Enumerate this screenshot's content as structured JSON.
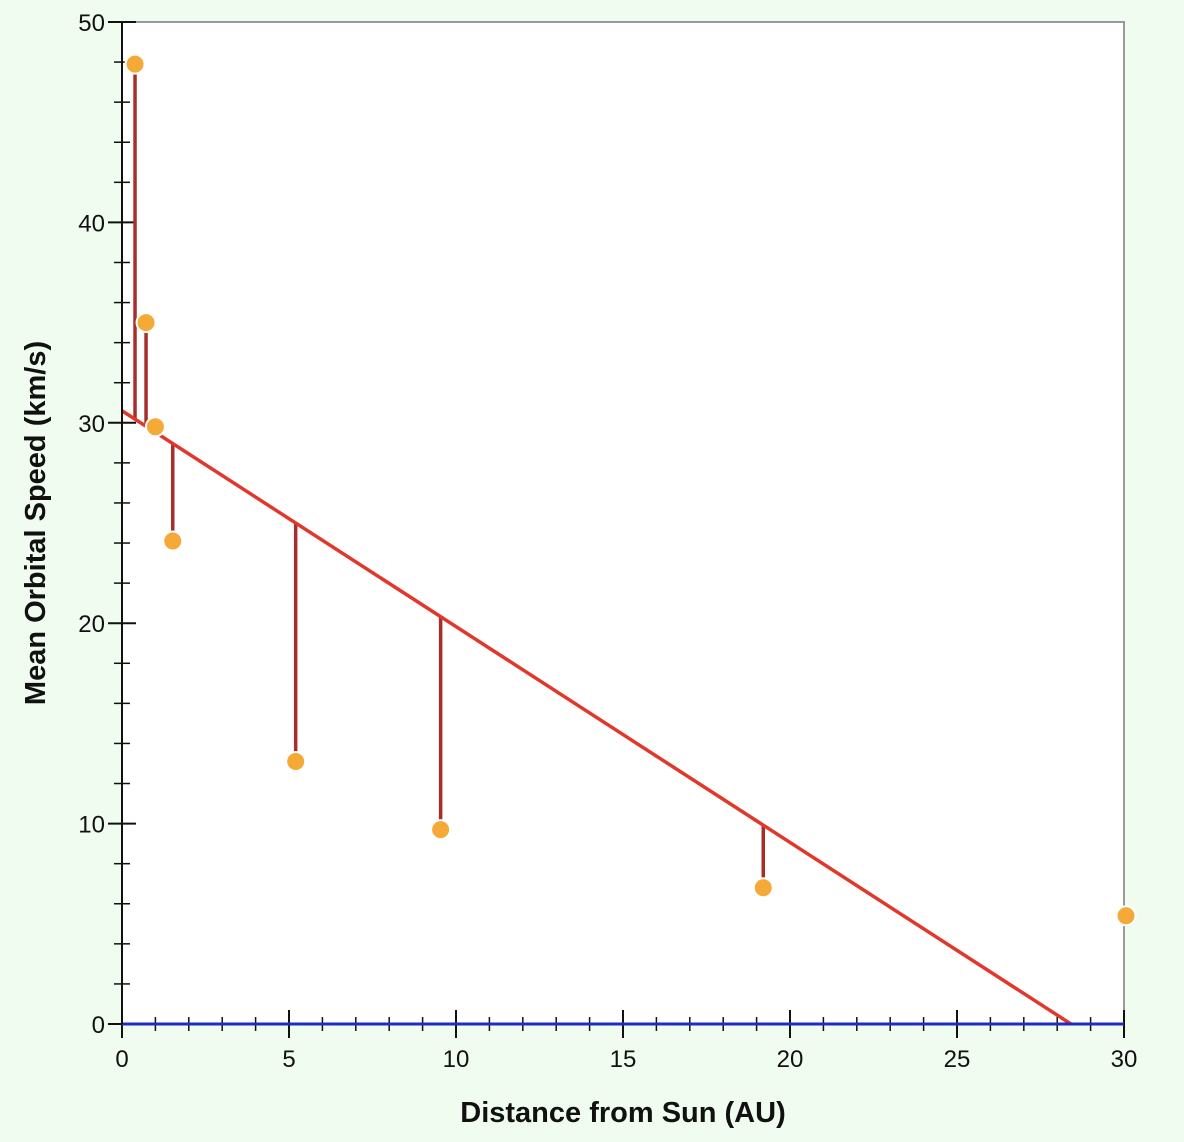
{
  "chart_data": {
    "type": "scatter",
    "title": "",
    "xlabel": "Distance from Sun (AU)",
    "ylabel": "Mean Orbital Speed (km/s)",
    "xlim": [
      0,
      30
    ],
    "ylim": [
      0,
      50
    ],
    "x_major_ticks": [
      0,
      5,
      10,
      15,
      20,
      25,
      30
    ],
    "x_minor_step": 1,
    "y_major_ticks": [
      0,
      10,
      20,
      30,
      40,
      50
    ],
    "y_minor_step": 2,
    "grid": false,
    "legend": "none",
    "points": [
      {
        "x": 0.39,
        "y": 47.9
      },
      {
        "x": 0.72,
        "y": 35.0
      },
      {
        "x": 1.0,
        "y": 29.8
      },
      {
        "x": 1.52,
        "y": 24.1
      },
      {
        "x": 5.2,
        "y": 13.1
      },
      {
        "x": 9.54,
        "y": 9.7
      },
      {
        "x": 19.2,
        "y": 6.8
      },
      {
        "x": 30.06,
        "y": 5.4
      }
    ],
    "fit_line": {
      "intercept": 30.6,
      "slope": -1.077
    },
    "residuals": true,
    "colors": {
      "background": "#f0fcef",
      "plot_background": "#ffffff",
      "point_fill": "#f5a937",
      "point_stroke": "#ffffff",
      "fit_line": "#e0382b",
      "residual": "#a82d2d",
      "zero_line": "#1f2bc2",
      "axis": "#111111",
      "frame": "#999999"
    }
  }
}
